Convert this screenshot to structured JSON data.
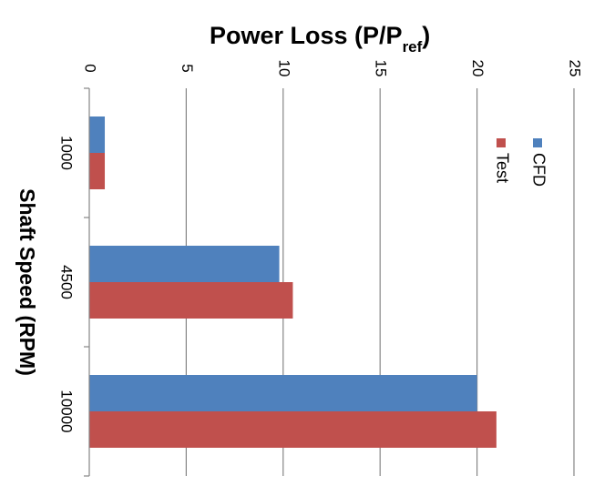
{
  "chart_data": {
    "type": "bar",
    "orientation": "horizontal",
    "title": "Power Loss (P/P",
    "title_subscript": "ref",
    "title_suffix": ")",
    "xlabel": "Power Loss (P/Pref)",
    "ylabel": "Shaft Speed (RPM)",
    "categories": [
      "1000",
      "4500",
      "10000"
    ],
    "series": [
      {
        "name": "CFD",
        "color": "#4f81bd",
        "values": [
          0.8,
          9.8,
          20.0
        ]
      },
      {
        "name": "Test",
        "color": "#c0504d",
        "values": [
          0.8,
          10.5,
          21.0
        ]
      }
    ],
    "xlim": [
      0,
      25
    ],
    "xticks": [
      "0",
      "5",
      "10",
      "15",
      "20",
      "25"
    ],
    "grid": true,
    "legend": "right",
    "rotated": "90-degrees-clockwise"
  }
}
